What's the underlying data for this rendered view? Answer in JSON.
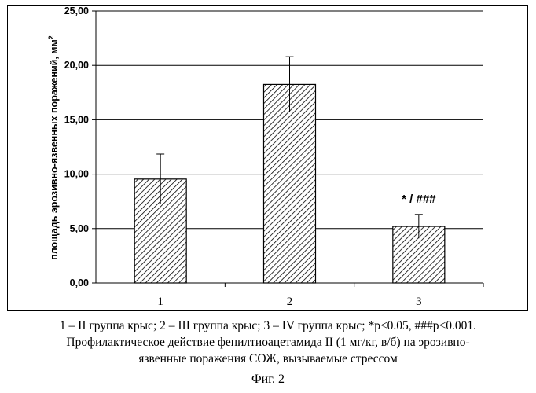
{
  "chart_data": {
    "type": "bar",
    "categories": [
      "1",
      "2",
      "3"
    ],
    "values": [
      9.55,
      18.25,
      5.2
    ],
    "errors": [
      2.3,
      2.55,
      1.1
    ],
    "annotations": [
      {
        "category": "3",
        "text": "* / ###"
      }
    ],
    "ylabel": "площадь эрозивно-язвенных поражений, мм",
    "ylabel_superscript": "2",
    "yticks": [
      "0,00",
      "5,00",
      "10,00",
      "15,00",
      "20,00",
      "25,00"
    ],
    "ylim": [
      0,
      25
    ],
    "grid": true,
    "bar_fill": "diagonal-hatch",
    "colors": {
      "bar_stroke": "#000000",
      "grid": "#000000"
    }
  },
  "caption": {
    "line1": "1 – II группа крыс; 2 – III группа крыс; 3 – IV группа крыс; *p<0.05, ###p<0.001.",
    "line2": "Профилактическое действие фенилтиоацетамида II (1 мг/кг, в/б) на эрозивно-",
    "line3": "язвенные поражения СОЖ, вызываемые стрессом"
  },
  "figure_label": "Фиг. 2"
}
